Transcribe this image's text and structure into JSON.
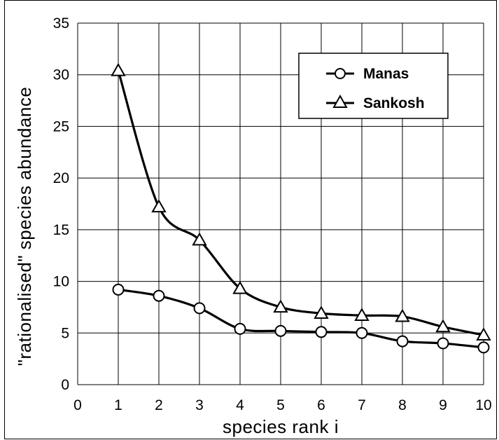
{
  "chart_data": {
    "type": "line",
    "xlabel": "species  rank  i",
    "ylabel": "\"rationalised\"  species  abundance",
    "xlim": [
      0,
      10
    ],
    "ylim": [
      0,
      35
    ],
    "xticks": [
      0,
      1,
      2,
      3,
      4,
      5,
      6,
      7,
      8,
      9,
      10
    ],
    "yticks": [
      0,
      5,
      10,
      15,
      20,
      25,
      30,
      35
    ],
    "grid": true,
    "legend_position": "top-right",
    "x": [
      1,
      2,
      3,
      4,
      5,
      6,
      7,
      8,
      9,
      10
    ],
    "series": [
      {
        "name": "Manas",
        "marker": "circle",
        "values": [
          9.2,
          8.6,
          7.4,
          5.4,
          5.2,
          5.1,
          5.0,
          4.2,
          4.0,
          3.6
        ]
      },
      {
        "name": "Sankosh",
        "marker": "triangle",
        "values": [
          30.4,
          17.2,
          14.0,
          9.3,
          7.5,
          6.9,
          6.7,
          6.6,
          5.6,
          4.8
        ]
      }
    ],
    "colors": {
      "line": "#000000",
      "marker_fill": "#ffffff",
      "grid": "#000000"
    }
  }
}
